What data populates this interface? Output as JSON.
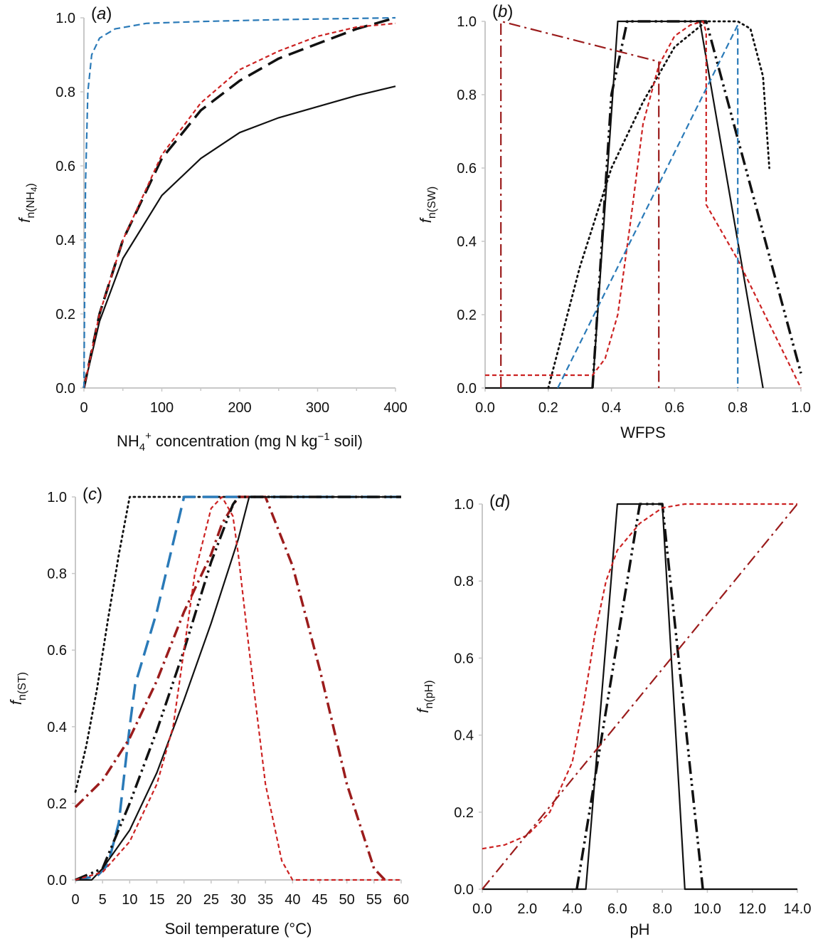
{
  "chart_data": [
    {
      "panel": "(a)",
      "type": "line",
      "panel_label": {
        "open": "(",
        "letter": "a",
        "close": ")"
      },
      "xlabel": {
        "base": "NH",
        "sub": "4",
        "sup": "+",
        "rest": " concentration (mg N kg",
        "exp": "−1",
        "end": " soil)"
      },
      "ylabel": {
        "f": "f",
        "sub": "n(NH",
        "sub2": "4",
        "close": ")"
      },
      "xlim": [
        0,
        400
      ],
      "ylim": [
        0,
        1.0
      ],
      "xticks": [
        "0",
        "100",
        "200",
        "300",
        "400"
      ],
      "yticks": [
        "0.0",
        "0.2",
        "0.4",
        "0.6",
        "0.8",
        "1.0"
      ],
      "series": [
        {
          "color": "#111111",
          "dash": "solid",
          "x": [
            0,
            20,
            50,
            100,
            150,
            200,
            250,
            300,
            350,
            400
          ],
          "y": [
            0,
            0.18,
            0.35,
            0.52,
            0.62,
            0.69,
            0.73,
            0.76,
            0.79,
            0.815
          ]
        },
        {
          "color": "#111111",
          "dash": "longdash",
          "x": [
            0,
            20,
            50,
            100,
            150,
            200,
            250,
            300,
            350,
            400
          ],
          "y": [
            0,
            0.2,
            0.4,
            0.62,
            0.75,
            0.83,
            0.89,
            0.93,
            0.97,
            1.0
          ]
        },
        {
          "color": "#cc2222",
          "dash": "shortdash",
          "x": [
            0,
            20,
            50,
            100,
            150,
            200,
            250,
            300,
            350,
            400
          ],
          "y": [
            0,
            0.2,
            0.4,
            0.63,
            0.77,
            0.86,
            0.91,
            0.95,
            0.975,
            0.985
          ]
        },
        {
          "color": "#2a7ab8",
          "dash": "dash",
          "x": [
            0,
            2,
            5,
            10,
            20,
            40,
            80,
            150,
            250,
            400
          ],
          "y": [
            0,
            0.55,
            0.8,
            0.9,
            0.945,
            0.97,
            0.985,
            0.99,
            0.995,
            1.0
          ]
        }
      ]
    },
    {
      "panel": "(b)",
      "type": "line",
      "panel_label": {
        "open": "(",
        "letter": "b",
        "close": ")"
      },
      "xlabel": {
        "text": "WFPS"
      },
      "ylabel": {
        "f": "f",
        "sub": "n(SW)"
      },
      "xlim": [
        0,
        1.0
      ],
      "ylim": [
        0,
        1.0
      ],
      "xticks": [
        "0.0",
        "0.2",
        "0.4",
        "0.6",
        "0.8",
        "1.0"
      ],
      "yticks": [
        "0.0",
        "0.2",
        "0.4",
        "0.6",
        "0.8",
        "1.0"
      ],
      "series": [
        {
          "color": "#111111",
          "dash": "solid",
          "x": [
            0,
            0.34,
            0.42,
            0.68,
            0.88
          ],
          "y": [
            0,
            0,
            1.0,
            1.0,
            0
          ]
        },
        {
          "color": "#111111",
          "dash": "dashdotdot",
          "x": [
            0.34,
            0.4,
            0.45,
            0.7,
            1.0
          ],
          "y": [
            0,
            0.8,
            1.0,
            1.0,
            0.04
          ]
        },
        {
          "color": "#111111",
          "dash": "dot",
          "x": [
            0.2,
            0.3,
            0.4,
            0.5,
            0.6,
            0.7,
            0.8,
            0.84,
            0.88,
            0.9
          ],
          "y": [
            0,
            0.33,
            0.6,
            0.78,
            0.93,
            1.0,
            1.0,
            0.98,
            0.85,
            0.6
          ]
        },
        {
          "color": "#cc2222",
          "dash": "shortdash",
          "x": [
            0,
            0.34,
            0.38,
            0.42,
            0.46,
            0.5,
            0.55,
            0.6,
            0.65,
            0.69,
            0.7,
            0.7,
            0.8,
            1.0
          ],
          "y": [
            0.035,
            0.035,
            0.08,
            0.2,
            0.45,
            0.72,
            0.88,
            0.96,
            0.99,
            1.0,
            0.97,
            0.5,
            0.35,
            0
          ]
        },
        {
          "color": "#2a7ab8",
          "dash": "dash",
          "x": [
            0.23,
            0.8,
            0.8
          ],
          "y": [
            0,
            0.99,
            0
          ]
        },
        {
          "color": "#9b1c1c",
          "dash": "dashdot",
          "x": [
            0.05,
            0.05,
            0.55,
            0.55
          ],
          "y": [
            0,
            1.0,
            0.89,
            0
          ]
        }
      ]
    },
    {
      "panel": "(c)",
      "type": "line",
      "panel_label": {
        "open": "(",
        "letter": "c",
        "close": ")"
      },
      "xlabel": {
        "text": "Soil temperature (°C)"
      },
      "ylabel": {
        "f": "f",
        "sub": "n(ST)"
      },
      "xlim": [
        0,
        60
      ],
      "ylim": [
        0,
        1.0
      ],
      "xticks": [
        "0",
        "5",
        "10",
        "15",
        "20",
        "25",
        "30",
        "35",
        "40",
        "45",
        "50",
        "55",
        "60"
      ],
      "yticks": [
        "0.0",
        "0.2",
        "0.4",
        "0.6",
        "0.8",
        "1.0"
      ],
      "series": [
        {
          "color": "#111111",
          "dash": "dot",
          "x": [
            0,
            2,
            4,
            6,
            8,
            10,
            60
          ],
          "y": [
            0.23,
            0.35,
            0.5,
            0.68,
            0.85,
            1.0,
            1.0
          ]
        },
        {
          "color": "#2a7ab8",
          "dash": "longdash",
          "x": [
            0,
            4,
            6,
            8,
            10,
            11,
            15,
            20,
            60
          ],
          "y": [
            0,
            0.01,
            0.04,
            0.15,
            0.4,
            0.51,
            0.7,
            1.0,
            1.0
          ]
        },
        {
          "color": "#9b1c1c",
          "dash": "dashdot",
          "x": [
            0,
            5,
            10,
            15,
            20,
            25,
            27,
            30,
            35,
            40,
            45,
            50,
            55,
            57
          ],
          "y": [
            0.19,
            0.26,
            0.37,
            0.52,
            0.7,
            0.85,
            0.93,
            1.0,
            1.0,
            0.82,
            0.55,
            0.25,
            0.03,
            0
          ]
        },
        {
          "color": "#111111",
          "dash": "dashdotdot",
          "x": [
            0,
            5,
            10,
            15,
            20,
            25,
            29,
            30,
            60
          ],
          "y": [
            0,
            0.03,
            0.2,
            0.39,
            0.6,
            0.83,
            0.98,
            1.0,
            1.0
          ]
        },
        {
          "color": "#111111",
          "dash": "solid",
          "x": [
            0,
            3,
            5,
            10,
            15,
            20,
            25,
            30,
            32,
            60
          ],
          "y": [
            0,
            0,
            0.03,
            0.13,
            0.28,
            0.47,
            0.67,
            0.89,
            1.0,
            1.0
          ]
        },
        {
          "color": "#cc2222",
          "dash": "shortdash",
          "x": [
            0,
            5,
            10,
            15,
            18,
            20,
            22,
            25,
            27,
            29,
            30,
            32,
            35,
            38,
            40,
            60
          ],
          "y": [
            0,
            0.02,
            0.1,
            0.25,
            0.4,
            0.6,
            0.8,
            0.97,
            1.0,
            0.95,
            0.85,
            0.6,
            0.25,
            0.05,
            0.0,
            0.0
          ]
        }
      ]
    },
    {
      "panel": "(d)",
      "type": "line",
      "panel_label": {
        "open": "(",
        "letter": "d",
        "close": ")"
      },
      "xlabel": {
        "text": "pH"
      },
      "ylabel": {
        "f": "f",
        "sub": "n(pH)"
      },
      "xlim": [
        0,
        14.0
      ],
      "ylim": [
        0,
        1.0
      ],
      "xticks": [
        "0.0",
        "2.0",
        "4.0",
        "6.0",
        "8.0",
        "10.0",
        "12.0",
        "14.0"
      ],
      "yticks": [
        "0.0",
        "0.2",
        "0.4",
        "0.6",
        "0.8",
        "1.0"
      ],
      "series": [
        {
          "color": "#111111",
          "dash": "solid",
          "x": [
            0,
            4.6,
            6.0,
            8.0,
            9.0,
            14.0
          ],
          "y": [
            0,
            0,
            1.0,
            1.0,
            0,
            0
          ]
        },
        {
          "color": "#111111",
          "dash": "dashdotdot",
          "x": [
            4.2,
            7.0,
            8.0,
            9.8
          ],
          "y": [
            0,
            1.0,
            1.0,
            0
          ]
        },
        {
          "color": "#cc2222",
          "dash": "shortdash",
          "x": [
            0,
            1,
            2,
            3,
            4,
            4.5,
            5,
            5.5,
            6,
            7,
            8,
            9,
            14.0
          ],
          "y": [
            0.105,
            0.115,
            0.14,
            0.2,
            0.33,
            0.48,
            0.66,
            0.8,
            0.88,
            0.95,
            0.99,
            1.0,
            1.0
          ]
        },
        {
          "color": "#9b1c1c",
          "dash": "dashdot",
          "x": [
            0,
            14.0
          ],
          "y": [
            0,
            1.0
          ]
        }
      ]
    }
  ]
}
